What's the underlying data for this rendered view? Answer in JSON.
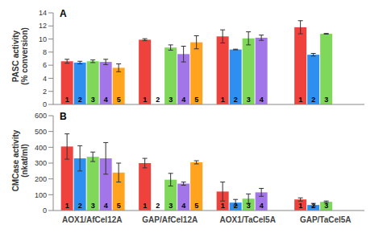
{
  "chart_data": [
    {
      "type": "bar",
      "title": "A",
      "y_label": "PASC activity (% conversion)",
      "tick_labels": "y",
      "categories": [
        "AOX1/AfCel12A",
        "GAP/AfCel12A",
        "AOX1/TaCel5A",
        "GAP/TaCel5A"
      ],
      "ylim": [
        0,
        14
      ],
      "yticks": [
        0,
        2,
        4,
        6,
        8,
        10,
        12,
        14
      ],
      "grid": false,
      "series": [
        {
          "name": "1",
          "color": "#f0423c",
          "values": [
            6.6,
            9.9,
            10.4,
            11.8
          ],
          "errors": [
            0.3,
            0.15,
            1.0,
            1.0
          ]
        },
        {
          "name": "2",
          "color": "#2f8ff0",
          "values": [
            6.4,
            0,
            8.4,
            7.6
          ],
          "errors": [
            0.2,
            null,
            0.05,
            0.2
          ]
        },
        {
          "name": "3",
          "color": "#7fd85a",
          "values": [
            6.6,
            8.7,
            10.1,
            10.8
          ],
          "errors": [
            0.2,
            0.4,
            1.0,
            0.05
          ]
        },
        {
          "name": "4",
          "color": "#a276e8",
          "values": [
            6.5,
            7.7,
            10.2,
            null
          ],
          "errors": [
            0.4,
            1.2,
            0.4,
            null
          ]
        },
        {
          "name": "5",
          "color": "#ffa41c",
          "values": [
            5.6,
            9.5,
            null,
            null
          ],
          "errors": [
            0.6,
            1.0,
            null,
            null
          ]
        }
      ]
    },
    {
      "type": "bar",
      "title": "B",
      "y_label": "CMCase activity (nkat/ml)",
      "categories": [
        "AOX1/AfCel12A",
        "GAP/AfCel12A",
        "AOX1/TaCel5A",
        "GAP/TaCel5A"
      ],
      "ylim": [
        0,
        600
      ],
      "yticks": [
        0,
        100,
        200,
        300,
        400,
        500,
        600
      ],
      "grid": false,
      "series": [
        {
          "name": "1",
          "color": "#f0423c",
          "values": [
            405,
            300,
            120,
            70
          ],
          "errors": [
            80,
            30,
            60,
            10
          ]
        },
        {
          "name": "2",
          "color": "#2f8ff0",
          "values": [
            330,
            0,
            50,
            35
          ],
          "errors": [
            80,
            null,
            20,
            10
          ]
        },
        {
          "name": "3",
          "color": "#7fd85a",
          "values": [
            340,
            195,
            75,
            55
          ],
          "errors": [
            30,
            40,
            30,
            5
          ]
        },
        {
          "name": "4",
          "color": "#a276e8",
          "values": [
            330,
            170,
            115,
            null
          ],
          "errors": [
            100,
            10,
            25,
            null
          ]
        },
        {
          "name": "5",
          "color": "#ffa41c",
          "values": [
            240,
            305,
            null,
            null
          ],
          "errors": [
            60,
            10,
            null,
            null
          ]
        }
      ]
    }
  ]
}
